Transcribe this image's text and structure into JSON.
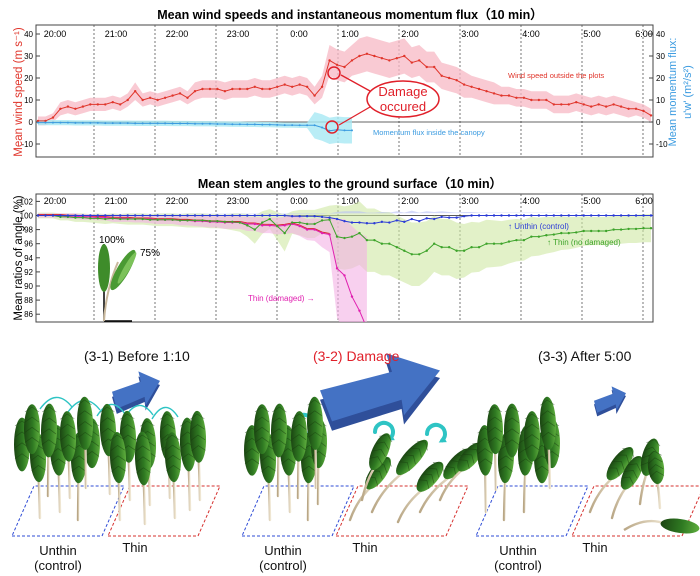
{
  "chart_data": [
    {
      "type": "line",
      "title": "Mean wind speeds and instantaneous momentum flux（10 min）",
      "time_ticks": [
        "20:00",
        "21:00",
        "22:00",
        "23:00",
        "0:00",
        "1:00",
        "2:00",
        "3:00",
        "4:00",
        "5:00",
        "6:00"
      ],
      "ylabel_left": "Mean wind speed (m s⁻¹)",
      "ylabel_right": "Mean momentum flux:",
      "ylabel_right_sub": "u'w' (m²/s²)",
      "y_ticks_left": [
        "-10",
        "0",
        "10",
        "20",
        "30",
        "40"
      ],
      "y_ticks_right": [
        "-10",
        "0",
        "10",
        "20",
        "30",
        "40"
      ],
      "ylim": [
        -15,
        40
      ],
      "annotation": "Damage occured",
      "annotation_line1": "Damage",
      "annotation_line2": "occured",
      "colors": {
        "wind": "#e0352b",
        "wind_band": "#f7b8c4",
        "flux": "#3b9be0",
        "flux_band": "#a8e8f4",
        "annotation": "#e0202a"
      },
      "series": [
        {
          "name": "Wind speed outside the plots",
          "values": [
            0.5,
            0.5,
            2,
            6,
            7,
            6,
            7,
            8,
            8,
            8,
            9,
            8,
            10,
            14,
            10,
            11,
            10,
            11,
            12,
            13,
            11,
            14,
            15,
            15,
            15,
            14,
            15,
            15,
            15,
            16,
            15,
            15,
            16,
            17,
            16,
            17,
            16,
            12,
            16,
            28,
            26,
            25,
            28,
            30,
            31,
            30,
            29,
            28,
            29,
            30,
            27,
            28,
            25,
            25,
            21,
            20,
            19,
            17,
            16,
            15,
            14,
            13,
            12,
            12,
            11,
            11,
            10,
            10,
            10,
            8,
            8,
            8,
            9,
            8,
            7,
            8,
            7,
            8,
            7,
            6,
            6,
            5,
            3
          ],
          "band": [
            2,
            2,
            2,
            3,
            3,
            3,
            3,
            3,
            3,
            3,
            3,
            3,
            3,
            4,
            3,
            3,
            3,
            3,
            3,
            3,
            3,
            4,
            4,
            4,
            4,
            4,
            4,
            4,
            4,
            4,
            4,
            4,
            4,
            4,
            4,
            4,
            4,
            4,
            5,
            7,
            7,
            7,
            7,
            8,
            8,
            8,
            8,
            8,
            8,
            8,
            7,
            7,
            7,
            7,
            6,
            6,
            6,
            6,
            5,
            5,
            5,
            5,
            4,
            4,
            4,
            4,
            4,
            4,
            4,
            4,
            4,
            4,
            4,
            4,
            4,
            4,
            4,
            4,
            4,
            4,
            3,
            3,
            3
          ]
        },
        {
          "name": "Momentum flux inside the canopy",
          "values": [
            -0.3,
            -0.3,
            -0.3,
            -0.3,
            -0.3,
            -0.4,
            -0.4,
            -0.4,
            -0.4,
            -0.5,
            -0.5,
            -0.5,
            -0.5,
            -0.6,
            -0.6,
            -0.6,
            -0.6,
            -0.6,
            -0.7,
            -0.7,
            -0.7,
            -0.8,
            -0.8,
            -0.8,
            -0.9,
            -0.9,
            -1.0,
            -1.0,
            -1.1,
            -1.1,
            -1.2,
            -1.2,
            -1.3,
            -1.4,
            -1.4,
            -1.5,
            -1.5,
            -1.5,
            -2.5,
            -4.0,
            -3.5,
            -3.8,
            -3.8
          ]
        }
      ]
    },
    {
      "type": "line",
      "title": "Mean stem angles to the ground surface（10 min）",
      "time_ticks": [
        "20:00",
        "21:00",
        "22:00",
        "23:00",
        "0:00",
        "1:00",
        "2:00",
        "3:00",
        "4:00",
        "5:00",
        "6:00"
      ],
      "ylabel": "Mean ratios of angle (%)",
      "y_ticks": [
        "86",
        "88",
        "90",
        "92",
        "94",
        "96",
        "98",
        "100",
        "102"
      ],
      "ylim": [
        85,
        102.5
      ],
      "colors": {
        "unthin": "#2b3bd6",
        "thin_ok": "#3da32a",
        "thin_damaged": "#e020b0",
        "red": "#d8202a"
      },
      "inset": {
        "label_full": "100%",
        "label_bent": "75%"
      },
      "series": [
        {
          "name": "↑ Unthin (control)",
          "values": [
            100,
            100,
            100,
            100,
            100,
            100,
            100,
            100,
            100,
            100,
            100,
            100,
            100,
            100,
            100,
            100,
            100,
            100,
            100,
            100,
            100,
            100,
            100,
            100,
            100,
            100,
            100,
            100,
            100,
            100,
            100,
            100,
            100,
            100,
            99.9,
            99.9,
            99.9,
            99.9,
            99.8,
            99.7,
            99.5,
            99.2,
            99.0,
            99.0,
            98.9,
            98.9,
            99.1,
            99.0,
            99.3,
            99.1,
            99.5,
            99.2,
            99.6,
            99.5,
            99.8,
            99.7,
            99.7,
            99.9,
            100,
            100,
            100,
            100,
            100,
            100,
            100,
            100,
            100,
            100,
            100,
            100,
            100,
            100,
            100,
            100,
            100,
            100,
            100,
            100,
            100,
            100,
            100,
            100,
            100,
            100
          ],
          "band": [
            0.2,
            0.2,
            0.2,
            0.2,
            0.2,
            0.2,
            0.2,
            0.2,
            0.2,
            0.2,
            0.2,
            0.2,
            0.2,
            0.2,
            0.2,
            0.2,
            0.2,
            0.2,
            0.2,
            0.2,
            0.2,
            0.2,
            0.2,
            0.2,
            0.2,
            0.2,
            0.2,
            0.2,
            0.2,
            0.2,
            0.2,
            0.2,
            0.2,
            0.2,
            0.3,
            0.3,
            0.3,
            0.3,
            0.4,
            0.6,
            1.0,
            1.4,
            1.6,
            1.6,
            1.5,
            1.5,
            1.4,
            1.4,
            1.3,
            1.3,
            1.2,
            1.2,
            1.0,
            1.0,
            0.8,
            0.8,
            0.7,
            0.6,
            0.5,
            0.4,
            0.4,
            0.4,
            0.4,
            0.4,
            0.4,
            0.4,
            0.4,
            0.4,
            0.4,
            0.4,
            0.4,
            0.4,
            0.4,
            0.4,
            0.4,
            0.4,
            0.4,
            0.4,
            0.4,
            0.4,
            0.4,
            0.4,
            0.4
          ]
        },
        {
          "name": "↑ Thin (no damaged)",
          "values": [
            100,
            100,
            100,
            99.8,
            99.8,
            99.7,
            99.7,
            99.6,
            99.6,
            99.5,
            99.6,
            99.5,
            99.5,
            99.5,
            99.5,
            99.4,
            99.4,
            99.4,
            99.4,
            99.3,
            99.3,
            99.3,
            99.3,
            99.2,
            99.2,
            99.1,
            99.1,
            99.0,
            98.6,
            98.0,
            99.0,
            99.5,
            98.5,
            97.5,
            99.0,
            99.0,
            98.8,
            98.8,
            99.3,
            99.4,
            97.0,
            96.8,
            97.0,
            97.5,
            96.5,
            96.5,
            96.0,
            96.0,
            95.5,
            95.0,
            94.5,
            94.5,
            95.0,
            96.0,
            95.5,
            95.5,
            95.0,
            95.0,
            95.5,
            95.5,
            96.0,
            96.0,
            96.0,
            96.3,
            96.5,
            96.5,
            97.0,
            97.0,
            97.2,
            97.3,
            97.5,
            97.5,
            97.6,
            97.8,
            97.8,
            97.8,
            97.8,
            98.0,
            98.0,
            98.1,
            98.1,
            98.2,
            98.2
          ],
          "band": [
            0.4,
            0.4,
            0.4,
            0.5,
            0.5,
            0.6,
            0.6,
            0.6,
            0.7,
            0.7,
            0.7,
            0.7,
            0.8,
            0.8,
            0.8,
            0.8,
            0.9,
            0.9,
            0.9,
            0.9,
            1.0,
            1.0,
            1.0,
            1.0,
            1.0,
            1.0,
            1.2,
            1.3,
            1.6,
            2.0,
            1.6,
            1.4,
            2.0,
            2.6,
            1.6,
            1.8,
            2.0,
            2.0,
            1.8,
            2.0,
            4.5,
            4.5,
            4.5,
            4.5,
            4.5,
            4.5,
            4.5,
            4.5,
            4.5,
            4.5,
            4.5,
            4.5,
            4.2,
            4.0,
            4.0,
            4.0,
            4.0,
            3.8,
            3.6,
            3.5,
            3.4,
            3.3,
            3.2,
            3.1,
            3.0,
            2.9,
            2.8,
            2.7,
            2.6,
            2.5,
            2.4,
            2.3,
            2.2,
            2.1,
            2.0,
            2.0,
            2.0,
            2.0,
            2.0,
            2.0,
            2.0,
            2.0,
            2.0
          ]
        },
        {
          "name": "Thin (damaged) →",
          "values": [
            100,
            100,
            100,
            100,
            99.9,
            99.9,
            99.8,
            99.8,
            99.7,
            99.7,
            99.6,
            99.6,
            99.6,
            99.5,
            99.5,
            99.5,
            99.4,
            99.4,
            99.4,
            99.3,
            99.3,
            99.2,
            99.2,
            99.1,
            99.1,
            99.0,
            99.0,
            99.0,
            98.8,
            98.8,
            98.6,
            98.6,
            98.5,
            98.6,
            98.8,
            98.5,
            98.0,
            98.0,
            97.5,
            97.3,
            92.5,
            91.5,
            88.5,
            86.5,
            84.0
          ],
          "band": [
            0.3,
            0.3,
            0.3,
            0.3,
            0.4,
            0.4,
            0.4,
            0.4,
            0.4,
            0.4,
            0.5,
            0.5,
            0.5,
            0.5,
            0.5,
            0.6,
            0.6,
            0.6,
            0.6,
            0.7,
            0.7,
            0.7,
            0.8,
            0.8,
            0.8,
            0.9,
            0.9,
            0.9,
            1.0,
            1.0,
            1.1,
            1.1,
            1.2,
            1.2,
            1.3,
            1.4,
            1.5,
            1.6,
            2.0,
            2.5,
            7.0,
            8.0,
            10.0,
            11.0,
            13.0
          ]
        }
      ]
    }
  ],
  "scenes": {
    "before": {
      "title": "(3-1) Before 1:10",
      "unthin": "Unthin",
      "unthin_sub": "(control)",
      "thin": "Thin"
    },
    "damage": {
      "title": "(3-2) Damage",
      "unthin": "Unthin",
      "unthin_sub": "(control)",
      "thin": "Thin"
    },
    "after": {
      "title": "(3-3) After 5:00",
      "unthin": "Unthin",
      "unthin_sub": "(control)",
      "thin": "Thin"
    },
    "colors": {
      "arrow": "#4472c4",
      "arrow_side": "#2f4f9a",
      "swirl": "#2ec4c4",
      "tree_dark": "#1f4d14",
      "tree_light": "#3f9a2a",
      "trunk": "#c8b89a",
      "plot_blue": "#2e4bd6",
      "plot_red": "#d6302e"
    }
  }
}
